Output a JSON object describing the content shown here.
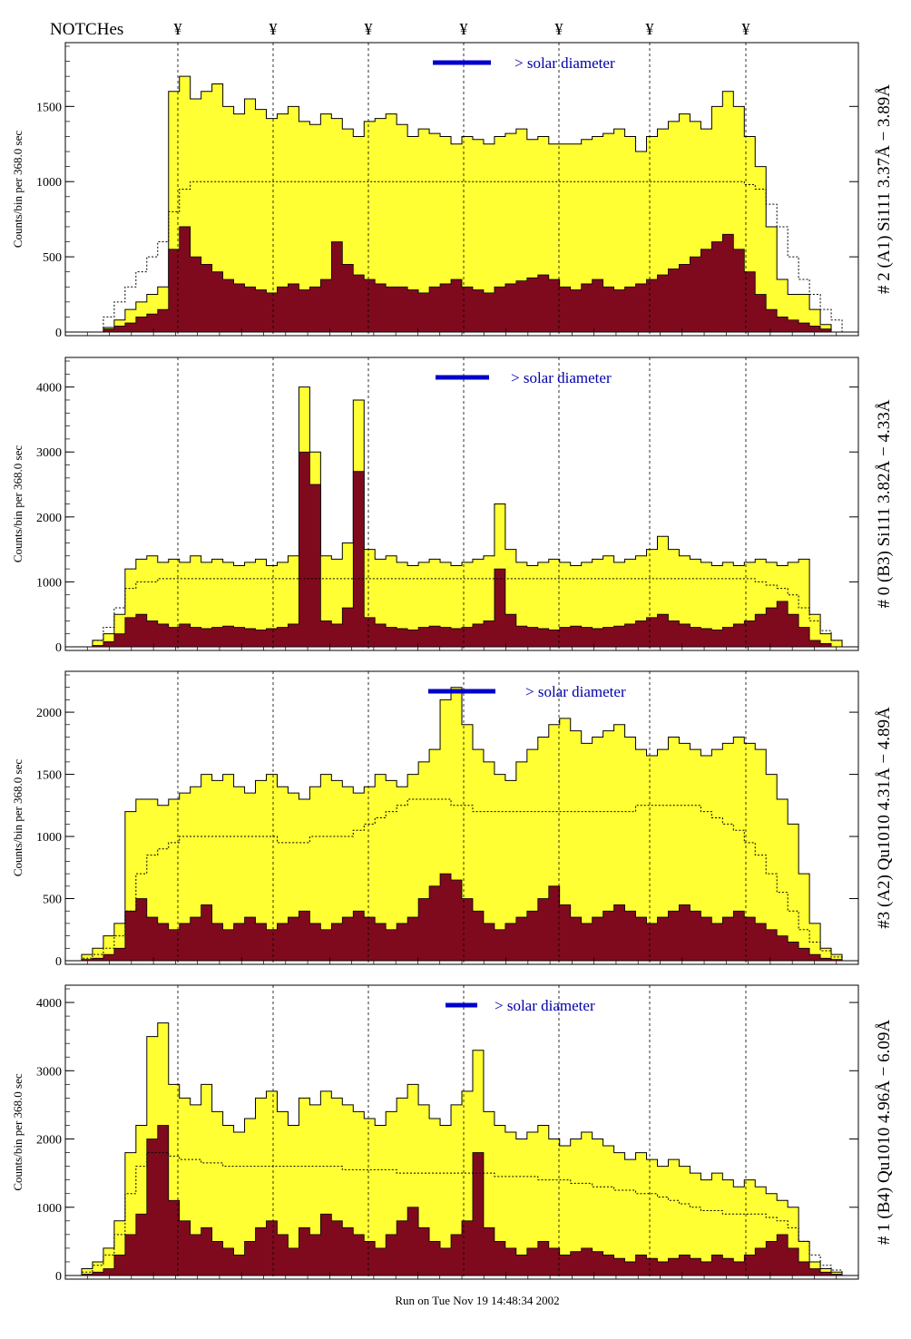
{
  "header": {
    "notches_label": "NOTCHes",
    "notch_symbol": "¥",
    "notch_count": 7
  },
  "footer": {
    "run_text": "Run on Tue Nov 19 14:48:34 2002"
  },
  "colors": {
    "fill_total": "#ffff33",
    "fill_subset": "#7f0a1e",
    "outline": "#000000",
    "solar_bar": "#0000cc",
    "label_blue": "#0000aa"
  },
  "chart_data": [
    {
      "type": "area",
      "panel": "A1",
      "right_label": "# 2 (A1) Si111  3.37Å − 3.89Å",
      "ylabel": "Counts/bin per    368.0 sec",
      "ylim": [
        0,
        1900
      ],
      "yticks": [
        0,
        500,
        1000,
        1500
      ],
      "solar_diameter_label": "> solar diameter",
      "series": [
        {
          "name": "",
          "role": "total",
          "values": [
            0,
            0,
            0,
            30,
            80,
            150,
            200,
            250,
            300,
            1600,
            1700,
            1550,
            1600,
            1650,
            1500,
            1450,
            1550,
            1480,
            1420,
            1450,
            1500,
            1400,
            1380,
            1450,
            1420,
            1350,
            1300,
            1400,
            1420,
            1450,
            1380,
            1300,
            1350,
            1320,
            1300,
            1250,
            1300,
            1280,
            1250,
            1300,
            1320,
            1350,
            1280,
            1300,
            1250,
            1250,
            1250,
            1280,
            1300,
            1320,
            1350,
            1300,
            1200,
            1300,
            1350,
            1400,
            1450,
            1400,
            1350,
            1500,
            1600,
            1500,
            1300,
            1100,
            700,
            350,
            250,
            250,
            150,
            50,
            0,
            0
          ]
        },
        {
          "name": "",
          "role": "subset",
          "values": [
            0,
            0,
            0,
            20,
            40,
            60,
            100,
            120,
            150,
            550,
            700,
            500,
            450,
            400,
            350,
            320,
            300,
            280,
            260,
            300,
            320,
            280,
            300,
            350,
            600,
            450,
            380,
            350,
            320,
            300,
            300,
            280,
            260,
            300,
            320,
            350,
            300,
            280,
            260,
            300,
            320,
            340,
            360,
            380,
            350,
            300,
            280,
            320,
            350,
            300,
            280,
            300,
            320,
            350,
            380,
            420,
            450,
            500,
            550,
            600,
            650,
            550,
            400,
            250,
            150,
            100,
            80,
            60,
            40,
            20,
            0,
            0
          ]
        },
        {
          "name": "",
          "role": "model",
          "values": [
            0,
            0,
            0,
            100,
            200,
            300,
            400,
            500,
            600,
            800,
            950,
            1000,
            1000,
            1000,
            1000,
            1000,
            1000,
            1000,
            1000,
            1000,
            1000,
            1000,
            1000,
            1000,
            1000,
            1000,
            1000,
            1000,
            1000,
            1000,
            1000,
            1000,
            1000,
            1000,
            1000,
            1000,
            1000,
            1000,
            1000,
            1000,
            1000,
            1000,
            1000,
            1000,
            1000,
            1000,
            1000,
            1000,
            1000,
            1000,
            1000,
            1000,
            1000,
            1000,
            1000,
            1000,
            1000,
            1000,
            1000,
            1000,
            1000,
            1000,
            980,
            950,
            850,
            700,
            500,
            350,
            250,
            150,
            80,
            0
          ]
        }
      ]
    },
    {
      "type": "area",
      "panel": "B3",
      "right_label": "# 0 (B3) Si111  3.82Å − 4.33Å",
      "ylabel": "Counts/bin per    368.0 sec",
      "ylim": [
        0,
        4400
      ],
      "yticks": [
        0,
        1000,
        2000,
        3000,
        4000
      ],
      "solar_diameter_label": "> solar diameter",
      "series": [
        {
          "name": "",
          "role": "total",
          "values": [
            0,
            0,
            100,
            200,
            500,
            1200,
            1350,
            1400,
            1300,
            1350,
            1300,
            1400,
            1300,
            1350,
            1300,
            1250,
            1300,
            1350,
            1250,
            1300,
            1400,
            4000,
            3000,
            1400,
            1350,
            1600,
            3800,
            1500,
            1350,
            1400,
            1300,
            1250,
            1300,
            1350,
            1300,
            1250,
            1300,
            1350,
            1400,
            2200,
            1500,
            1300,
            1250,
            1300,
            1350,
            1300,
            1250,
            1300,
            1350,
            1400,
            1300,
            1350,
            1400,
            1500,
            1700,
            1500,
            1400,
            1350,
            1300,
            1250,
            1300,
            1250,
            1300,
            1350,
            1300,
            1250,
            1300,
            1350,
            500,
            200,
            100,
            0
          ]
        },
        {
          "name": "",
          "role": "subset",
          "values": [
            0,
            0,
            20,
            80,
            200,
            450,
            500,
            400,
            350,
            300,
            350,
            300,
            280,
            300,
            320,
            300,
            280,
            260,
            280,
            300,
            350,
            3000,
            2500,
            400,
            350,
            600,
            2700,
            450,
            350,
            300,
            280,
            260,
            300,
            320,
            300,
            280,
            300,
            350,
            400,
            1200,
            500,
            320,
            300,
            280,
            260,
            300,
            320,
            300,
            280,
            300,
            320,
            350,
            400,
            450,
            500,
            400,
            350,
            300,
            280,
            260,
            300,
            350,
            400,
            500,
            600,
            700,
            500,
            300,
            100,
            50,
            0,
            0
          ]
        },
        {
          "name": "",
          "role": "model",
          "values": [
            0,
            0,
            100,
            300,
            600,
            900,
            1000,
            1000,
            1050,
            1050,
            1050,
            1050,
            1050,
            1050,
            1050,
            1050,
            1050,
            1050,
            1050,
            1050,
            1050,
            1050,
            1050,
            1050,
            1050,
            1050,
            1050,
            1050,
            1050,
            1050,
            1050,
            1050,
            1050,
            1050,
            1050,
            1050,
            1050,
            1050,
            1050,
            1050,
            1050,
            1050,
            1050,
            1050,
            1050,
            1050,
            1050,
            1050,
            1050,
            1050,
            1050,
            1050,
            1050,
            1050,
            1050,
            1050,
            1050,
            1050,
            1050,
            1050,
            1050,
            1050,
            1050,
            1000,
            950,
            900,
            800,
            600,
            400,
            250,
            100,
            0
          ]
        }
      ]
    },
    {
      "type": "area",
      "panel": "A2",
      "right_label": "#3 (A2) Qu1010  4.31Å − 4.89Å",
      "ylabel": "Counts/bin per    368.0 sec",
      "ylim": [
        0,
        2300
      ],
      "yticks": [
        0,
        500,
        1000,
        1500,
        2000
      ],
      "solar_diameter_label": "> solar diameter",
      "series": [
        {
          "name": "",
          "role": "total",
          "values": [
            0,
            50,
            100,
            200,
            300,
            1200,
            1300,
            1300,
            1250,
            1300,
            1350,
            1400,
            1500,
            1450,
            1500,
            1400,
            1350,
            1450,
            1500,
            1400,
            1350,
            1300,
            1400,
            1500,
            1450,
            1400,
            1350,
            1400,
            1500,
            1450,
            1400,
            1500,
            1600,
            1700,
            2100,
            2200,
            1900,
            1700,
            1600,
            1500,
            1450,
            1600,
            1700,
            1800,
            1900,
            1950,
            1850,
            1750,
            1800,
            1850,
            1900,
            1800,
            1700,
            1650,
            1700,
            1800,
            1750,
            1700,
            1650,
            1700,
            1750,
            1800,
            1750,
            1700,
            1500,
            1300,
            1100,
            700,
            300,
            100,
            50,
            0
          ]
        },
        {
          "name": "",
          "role": "subset",
          "values": [
            0,
            10,
            20,
            50,
            100,
            400,
            500,
            350,
            300,
            250,
            300,
            350,
            450,
            300,
            250,
            300,
            350,
            300,
            250,
            300,
            350,
            400,
            300,
            250,
            300,
            350,
            400,
            350,
            300,
            250,
            300,
            350,
            500,
            600,
            700,
            650,
            500,
            400,
            300,
            250,
            300,
            350,
            400,
            500,
            600,
            450,
            350,
            300,
            350,
            400,
            450,
            400,
            350,
            300,
            350,
            400,
            450,
            400,
            350,
            300,
            350,
            400,
            350,
            300,
            250,
            200,
            150,
            100,
            50,
            20,
            10,
            0
          ]
        },
        {
          "name": "",
          "role": "model",
          "values": [
            0,
            20,
            50,
            100,
            200,
            400,
            700,
            850,
            900,
            950,
            1000,
            1000,
            1000,
            1000,
            1000,
            1000,
            1000,
            1000,
            1000,
            950,
            950,
            950,
            1000,
            1000,
            1000,
            1000,
            1050,
            1100,
            1150,
            1200,
            1250,
            1300,
            1300,
            1300,
            1300,
            1250,
            1250,
            1200,
            1200,
            1200,
            1200,
            1200,
            1200,
            1200,
            1200,
            1200,
            1200,
            1200,
            1200,
            1200,
            1200,
            1200,
            1250,
            1250,
            1250,
            1250,
            1250,
            1250,
            1200,
            1150,
            1100,
            1050,
            950,
            850,
            700,
            550,
            400,
            250,
            150,
            80,
            30,
            0
          ]
        }
      ]
    },
    {
      "type": "area",
      "panel": "B4",
      "right_label": "# 1 (B4) Qu1010 4.96Å − 6.09Å",
      "ylabel": "Counts/bin per    368.0 sec",
      "ylim": [
        0,
        4200
      ],
      "yticks": [
        0,
        1000,
        2000,
        3000,
        4000
      ],
      "solar_diameter_label": "> solar diameter",
      "series": [
        {
          "name": "",
          "role": "total",
          "values": [
            0,
            100,
            200,
            400,
            800,
            1800,
            2200,
            3500,
            3700,
            2800,
            2600,
            2500,
            2800,
            2400,
            2200,
            2100,
            2300,
            2600,
            2700,
            2400,
            2200,
            2600,
            2500,
            2700,
            2600,
            2500,
            2400,
            2300,
            2200,
            2400,
            2600,
            2800,
            2500,
            2300,
            2200,
            2500,
            2700,
            3300,
            2400,
            2200,
            2100,
            2000,
            2100,
            2200,
            2000,
            1900,
            2000,
            2100,
            2000,
            1900,
            1800,
            1700,
            1800,
            1700,
            1600,
            1700,
            1600,
            1500,
            1400,
            1500,
            1400,
            1300,
            1400,
            1300,
            1200,
            1100,
            1000,
            500,
            200,
            100,
            50,
            0
          ]
        },
        {
          "name": "",
          "role": "subset",
          "values": [
            0,
            20,
            50,
            100,
            300,
            600,
            900,
            2000,
            2200,
            1100,
            800,
            600,
            700,
            500,
            400,
            300,
            500,
            700,
            800,
            600,
            400,
            700,
            600,
            900,
            800,
            700,
            600,
            500,
            400,
            600,
            800,
            1000,
            700,
            500,
            400,
            600,
            800,
            1800,
            700,
            500,
            400,
            300,
            400,
            500,
            400,
            300,
            350,
            400,
            350,
            300,
            250,
            200,
            300,
            250,
            200,
            250,
            300,
            250,
            200,
            300,
            250,
            200,
            300,
            400,
            500,
            600,
            400,
            200,
            100,
            50,
            20,
            0
          ]
        },
        {
          "name": "",
          "role": "model",
          "values": [
            0,
            50,
            150,
            300,
            600,
            1200,
            1600,
            1800,
            1800,
            1750,
            1700,
            1700,
            1650,
            1650,
            1600,
            1600,
            1600,
            1600,
            1600,
            1600,
            1600,
            1600,
            1600,
            1600,
            1600,
            1550,
            1550,
            1550,
            1550,
            1550,
            1500,
            1500,
            1500,
            1500,
            1500,
            1500,
            1500,
            1500,
            1500,
            1450,
            1450,
            1450,
            1450,
            1400,
            1400,
            1400,
            1350,
            1350,
            1300,
            1300,
            1250,
            1250,
            1200,
            1200,
            1150,
            1100,
            1050,
            1000,
            950,
            950,
            900,
            900,
            900,
            900,
            850,
            800,
            700,
            500,
            300,
            150,
            80,
            0
          ]
        }
      ]
    }
  ]
}
